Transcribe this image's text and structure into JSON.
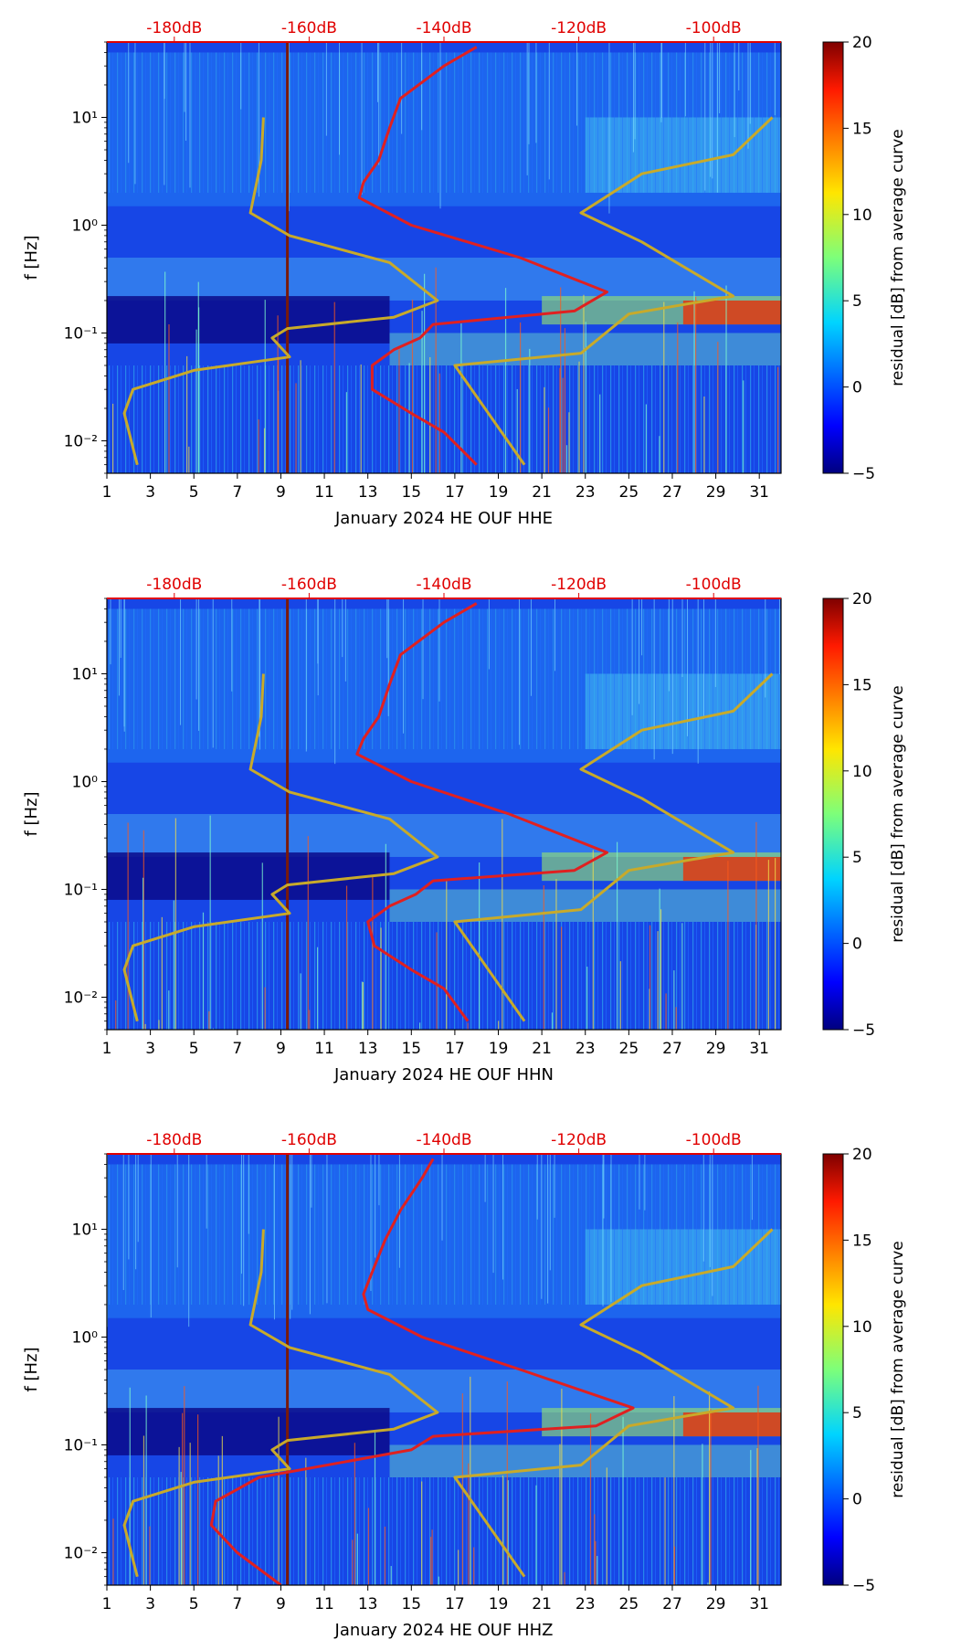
{
  "chart_data": [
    {
      "type": "heatmap",
      "title": "",
      "xlabel": "January 2024 HE OUF  HHE",
      "ylabel": "f [Hz]",
      "x_ticks": [
        "1",
        "3",
        "5",
        "7",
        "9",
        "11",
        "13",
        "15",
        "17",
        "19",
        "21",
        "23",
        "25",
        "27",
        "29",
        "31"
      ],
      "x_range": [
        1,
        32
      ],
      "y_range": [
        0.005,
        50
      ],
      "y_scale": "log",
      "y_ticks": [
        {
          "label": "10⁻²",
          "value": 0.01
        },
        {
          "label": "10⁻¹",
          "value": 0.1
        },
        {
          "label": "10⁰",
          "value": 1
        },
        {
          "label": "10¹",
          "value": 10
        }
      ],
      "top_labels": [
        "-180dB",
        "-160dB",
        "-140dB",
        "-120dB",
        "-100dB"
      ],
      "colorbar": {
        "label": "residual [dB] from average curve",
        "ticks": [
          "−5",
          "0",
          "5",
          "10",
          "15",
          "20"
        ],
        "range": [
          -5,
          20
        ]
      },
      "series": [
        {
          "name": "reference noise model",
          "color": "#c8aa2a",
          "x": [
            8.2,
            8.1,
            7.6,
            9.4,
            14,
            16.2,
            14.2,
            9.3,
            8.6,
            9.4,
            5,
            2.2,
            1.8,
            2.4
          ],
          "y": [
            10,
            4,
            1.3,
            0.8,
            0.45,
            0.2,
            0.14,
            0.11,
            0.09,
            0.06,
            0.045,
            0.03,
            0.018,
            0.006
          ]
        },
        {
          "name": "reference noise model high",
          "color": "#c8aa2a",
          "x": [
            31.6,
            29.8,
            25.6,
            22.8,
            25.6,
            29.8,
            25,
            22.8,
            17,
            20.2
          ],
          "y": [
            10,
            4.5,
            3,
            1.3,
            0.7,
            0.22,
            0.15,
            0.065,
            0.05,
            0.006
          ]
        },
        {
          "name": "median power",
          "color": "#e02020",
          "x": [
            18,
            16.5,
            14.5,
            14,
            13.5,
            12.8,
            12.6,
            15,
            20,
            24,
            22.5,
            16,
            15.4,
            14.2,
            13.2,
            13.2,
            15,
            16.5,
            18
          ],
          "y": [
            45,
            30,
            15,
            8,
            4,
            2.5,
            1.8,
            1,
            0.5,
            0.24,
            0.16,
            0.12,
            0.09,
            0.07,
            0.05,
            0.03,
            0.018,
            0.012,
            0.006
          ]
        }
      ],
      "vertical_lines_x": [
        9.3
      ]
    },
    {
      "type": "heatmap",
      "title": "",
      "xlabel": "January 2024 HE OUF  HHN",
      "ylabel": "f [Hz]",
      "x_ticks": [
        "1",
        "3",
        "5",
        "7",
        "9",
        "11",
        "13",
        "15",
        "17",
        "19",
        "21",
        "23",
        "25",
        "27",
        "29",
        "31"
      ],
      "x_range": [
        1,
        32
      ],
      "y_range": [
        0.005,
        50
      ],
      "y_scale": "log",
      "y_ticks": [
        {
          "label": "10⁻²",
          "value": 0.01
        },
        {
          "label": "10⁻¹",
          "value": 0.1
        },
        {
          "label": "10⁰",
          "value": 1
        },
        {
          "label": "10¹",
          "value": 10
        }
      ],
      "top_labels": [
        "-180dB",
        "-160dB",
        "-140dB",
        "-120dB",
        "-100dB"
      ],
      "colorbar": {
        "label": "residual [dB] from average curve",
        "ticks": [
          "−5",
          "0",
          "5",
          "10",
          "15",
          "20"
        ],
        "range": [
          -5,
          20
        ]
      },
      "series": [
        {
          "name": "reference noise model",
          "color": "#c8aa2a",
          "x": [
            8.2,
            8.1,
            7.6,
            9.4,
            14,
            16.2,
            14.2,
            9.3,
            8.6,
            9.4,
            5,
            2.2,
            1.8,
            2.4
          ],
          "y": [
            10,
            4,
            1.3,
            0.8,
            0.45,
            0.2,
            0.14,
            0.11,
            0.09,
            0.06,
            0.045,
            0.03,
            0.018,
            0.006
          ]
        },
        {
          "name": "reference noise model high",
          "color": "#c8aa2a",
          "x": [
            31.6,
            29.8,
            25.6,
            22.8,
            25.6,
            29.8,
            25,
            22.8,
            17,
            20.2
          ],
          "y": [
            10,
            4.5,
            3,
            1.3,
            0.7,
            0.22,
            0.15,
            0.065,
            0.05,
            0.006
          ]
        },
        {
          "name": "median power",
          "color": "#e02020",
          "x": [
            18,
            16.5,
            14.5,
            14,
            13.5,
            12.8,
            12.5,
            15,
            19.5,
            24,
            22.5,
            16,
            15.2,
            14,
            13,
            13.3,
            15,
            16.5,
            17.6
          ],
          "y": [
            45,
            30,
            15,
            8,
            4,
            2.5,
            1.8,
            1,
            0.5,
            0.22,
            0.15,
            0.12,
            0.09,
            0.07,
            0.05,
            0.03,
            0.018,
            0.012,
            0.006
          ]
        }
      ],
      "vertical_lines_x": [
        9.3
      ]
    },
    {
      "type": "heatmap",
      "title": "",
      "xlabel": "January 2024 HE OUF  HHZ",
      "ylabel": "f [Hz]",
      "x_ticks": [
        "1",
        "3",
        "5",
        "7",
        "9",
        "11",
        "13",
        "15",
        "17",
        "19",
        "21",
        "23",
        "25",
        "27",
        "29",
        "31"
      ],
      "x_range": [
        1,
        32
      ],
      "y_range": [
        0.005,
        50
      ],
      "y_scale": "log",
      "y_ticks": [
        {
          "label": "10⁻²",
          "value": 0.01
        },
        {
          "label": "10⁻¹",
          "value": 0.1
        },
        {
          "label": "10⁰",
          "value": 1
        },
        {
          "label": "10¹",
          "value": 10
        }
      ],
      "top_labels": [
        "-180dB",
        "-160dB",
        "-140dB",
        "-120dB",
        "-100dB"
      ],
      "colorbar": {
        "label": "residual [dB] from average curve",
        "ticks": [
          "−5",
          "0",
          "5",
          "10",
          "15",
          "20"
        ],
        "range": [
          -5,
          20
        ]
      },
      "series": [
        {
          "name": "reference noise model",
          "color": "#c8aa2a",
          "x": [
            8.2,
            8.1,
            7.6,
            9.4,
            14,
            16.2,
            14.2,
            9.3,
            8.6,
            9.4,
            5,
            2.2,
            1.8,
            2.4
          ],
          "y": [
            10,
            4,
            1.3,
            0.8,
            0.45,
            0.2,
            0.14,
            0.11,
            0.09,
            0.06,
            0.045,
            0.03,
            0.018,
            0.006
          ]
        },
        {
          "name": "reference noise model high",
          "color": "#c8aa2a",
          "x": [
            31.6,
            29.8,
            25.6,
            22.8,
            25.6,
            29.8,
            25,
            22.8,
            17,
            20.2
          ],
          "y": [
            10,
            4.5,
            3,
            1.3,
            0.7,
            0.22,
            0.15,
            0.065,
            0.05,
            0.006
          ]
        },
        {
          "name": "median power",
          "color": "#e02020",
          "x": [
            16,
            15.5,
            14.5,
            13.8,
            13.2,
            12.8,
            13,
            15.5,
            20,
            25.2,
            23.5,
            16,
            15,
            12,
            8,
            6,
            5.8,
            7,
            9
          ],
          "y": [
            45,
            30,
            15,
            8,
            4,
            2.5,
            1.8,
            1,
            0.5,
            0.22,
            0.15,
            0.12,
            0.09,
            0.07,
            0.05,
            0.03,
            0.018,
            0.01,
            0.005
          ]
        }
      ],
      "vertical_lines_x": [
        9.3
      ]
    }
  ]
}
